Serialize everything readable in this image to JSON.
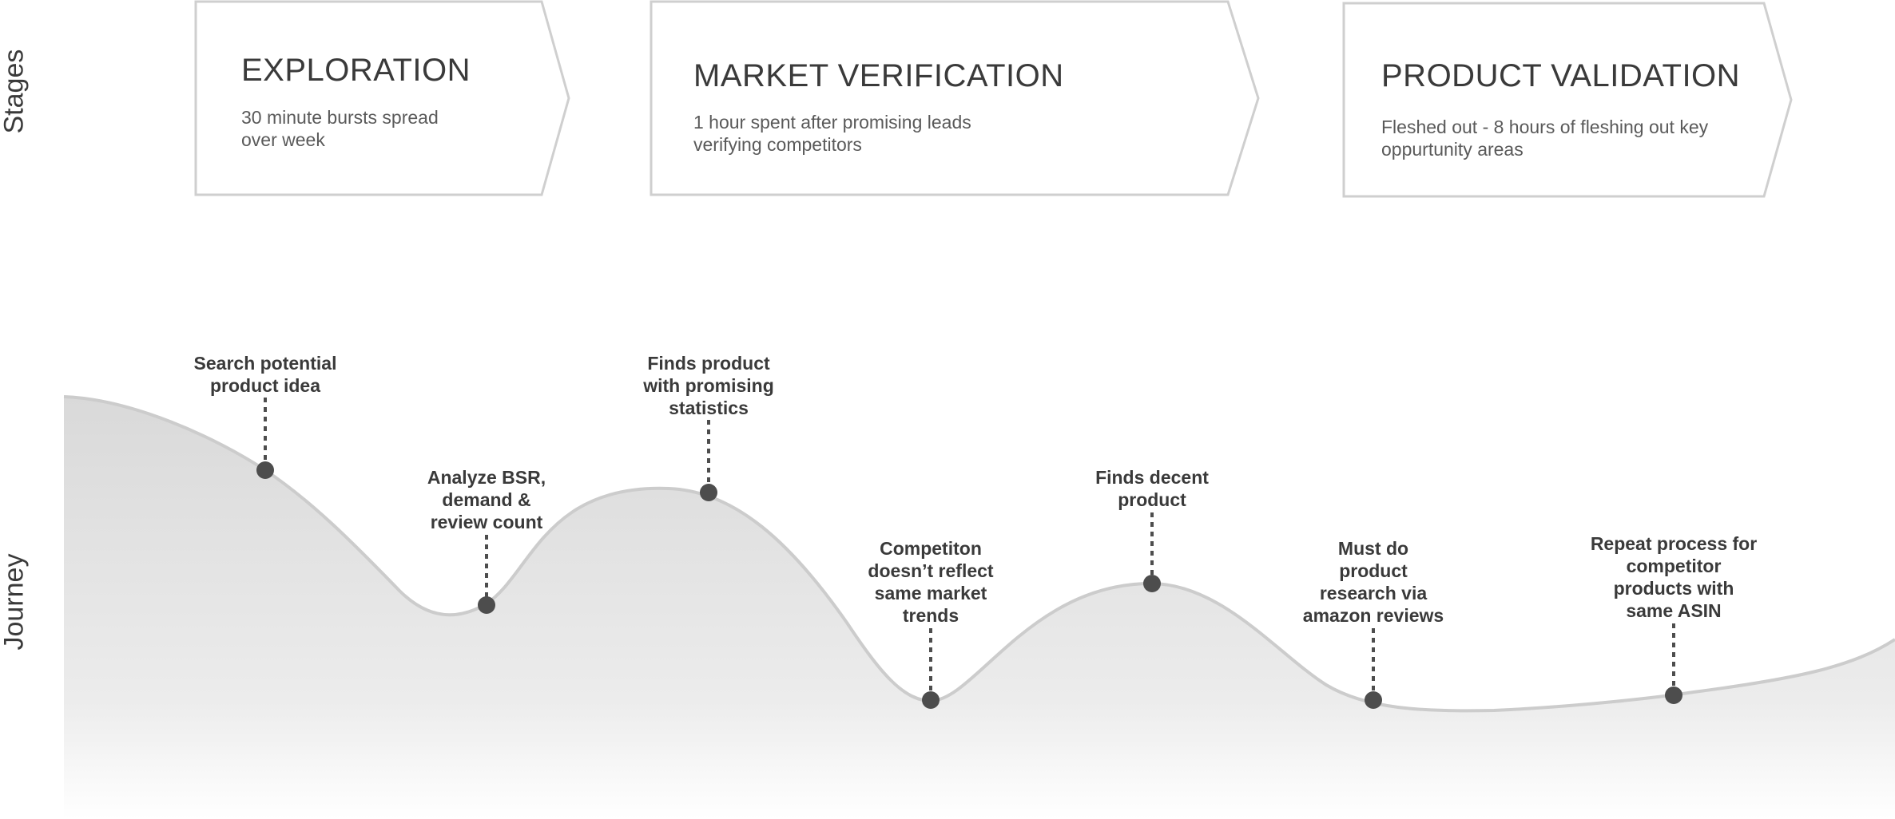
{
  "rows": {
    "stages_label": "Stages",
    "journey_label": "Journey"
  },
  "stages": [
    {
      "title": "EXPLORATION",
      "description": [
        "30 minute bursts spread",
        "over week"
      ]
    },
    {
      "title": "MARKET VERIFICATION",
      "description": [
        "1  hour spent after promising leads",
        "verifying competitors"
      ]
    },
    {
      "title": "PRODUCT VALIDATION",
      "description": [
        "Fleshed out - 8 hours of fleshing out key",
        "oppurtunity areas"
      ]
    }
  ],
  "moments": [
    {
      "label": [
        "Search potential",
        "product idea"
      ]
    },
    {
      "label": [
        "Analyze BSR,",
        "demand &",
        "review count"
      ]
    },
    {
      "label": [
        "Finds product",
        "with promising",
        "statistics"
      ]
    },
    {
      "label": [
        "Competiton",
        "doesn’t reflect",
        "same market",
        "trends"
      ]
    },
    {
      "label": [
        "Finds decent",
        "product"
      ]
    },
    {
      "label": [
        "Must do",
        "product",
        "research via",
        "amazon reviews"
      ]
    },
    {
      "label": [
        "Repeat process for",
        "competitor",
        "products with",
        "same ASIN"
      ]
    }
  ],
  "colors": {
    "stage_border": "#cfcfcf",
    "curve_line": "#cccccc",
    "area_top": "#d9d9d9",
    "area_bottom": "#ffffff",
    "dot": "#4d4d4d",
    "text": "#3a3a3a"
  }
}
